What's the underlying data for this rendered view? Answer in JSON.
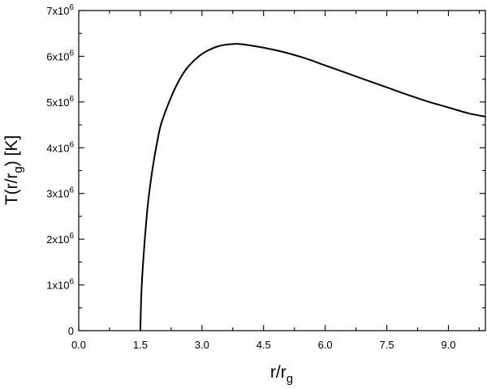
{
  "chart_data": {
    "type": "line",
    "xlabel": "r/r",
    "xlabel_sub": "g",
    "ylabel_main": "T(r/r",
    "ylabel_sub": "g",
    "ylabel_end": ") [K]",
    "xlim": [
      0,
      9.9
    ],
    "ylim": [
      0,
      7000000
    ],
    "x_ticks": [
      0,
      1.5,
      3.0,
      4.5,
      6.0,
      7.5,
      9.0
    ],
    "x_tick_labels": [
      "0.0",
      "1.5",
      "3.0",
      "4.5",
      "6.0",
      "7.5",
      "9.0"
    ],
    "y_ticks": [
      0,
      1000000,
      2000000,
      3000000,
      4000000,
      5000000,
      6000000,
      7000000
    ],
    "y_tick_labels": [
      {
        "base": "0",
        "exp": ""
      },
      {
        "base": "1x10",
        "exp": "6"
      },
      {
        "base": "2x10",
        "exp": "6"
      },
      {
        "base": "3x10",
        "exp": "6"
      },
      {
        "base": "4x10",
        "exp": "6"
      },
      {
        "base": "5x10",
        "exp": "6"
      },
      {
        "base": "6x10",
        "exp": "6"
      },
      {
        "base": "7x10",
        "exp": "6"
      }
    ],
    "grid": false,
    "series": [
      {
        "x": [
          1.5,
          1.52,
          1.55,
          1.6,
          1.65,
          1.7,
          1.8,
          1.9,
          2.0,
          2.2,
          2.4,
          2.6,
          2.8,
          3.0,
          3.2,
          3.4,
          3.6,
          3.8,
          4.0,
          4.3,
          4.6,
          5.0,
          5.5,
          6.0,
          6.5,
          7.0,
          7.5,
          8.0,
          8.5,
          9.0,
          9.5,
          9.9
        ],
        "y": [
          0,
          700000,
          1250000,
          1900000,
          2450000,
          2900000,
          3560000,
          4080000,
          4500000,
          5000000,
          5400000,
          5700000,
          5900000,
          6050000,
          6150000,
          6220000,
          6255000,
          6270000,
          6260000,
          6220000,
          6170000,
          6090000,
          5960000,
          5800000,
          5640000,
          5480000,
          5320000,
          5160000,
          5010000,
          4880000,
          4750000,
          4680000
        ]
      }
    ]
  }
}
